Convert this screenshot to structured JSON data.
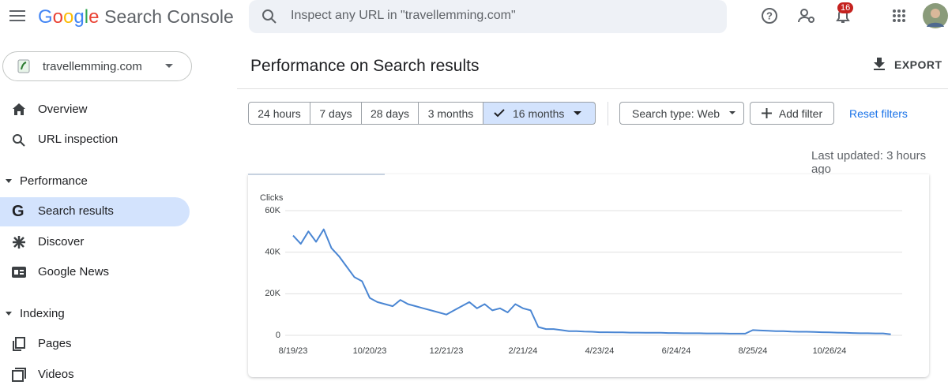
{
  "brand": {
    "logo": "Google",
    "product": "Search Console"
  },
  "search": {
    "placeholder": "Inspect any URL in \"travellemming.com\""
  },
  "notifications": {
    "count": "16"
  },
  "property": "travellemming.com",
  "nav": {
    "items": [
      "Overview",
      "URL inspection"
    ],
    "sections": [
      {
        "title": "Performance",
        "items": [
          "Search results",
          "Discover",
          "Google News"
        ]
      },
      {
        "title": "Indexing",
        "items": [
          "Pages",
          "Videos"
        ]
      }
    ]
  },
  "page": {
    "title": "Performance on Search results",
    "export": "EXPORT",
    "last_updated": "Last updated: 3 hours ago"
  },
  "filters": {
    "ranges": [
      "24 hours",
      "7 days",
      "28 days",
      "3 months",
      "16 months"
    ],
    "search_type": "Search type: Web",
    "add_filter": "Add filter",
    "reset": "Reset filters"
  },
  "chart_data": {
    "type": "line",
    "y_label": "Clicks",
    "color": "#4a86d3",
    "categories": [
      "8/19/23",
      null,
      null,
      null,
      null,
      null,
      null,
      null,
      null,
      null,
      "10/20/23",
      null,
      null,
      null,
      null,
      null,
      null,
      null,
      null,
      null,
      "12/21/23",
      null,
      null,
      null,
      null,
      null,
      null,
      null,
      null,
      null,
      "2/21/24",
      null,
      null,
      null,
      null,
      null,
      null,
      null,
      null,
      null,
      "4/23/24",
      null,
      null,
      null,
      null,
      null,
      null,
      null,
      null,
      null,
      "6/24/24",
      null,
      null,
      null,
      null,
      null,
      null,
      null,
      null,
      null,
      "8/25/24",
      null,
      null,
      null,
      null,
      null,
      null,
      null,
      null,
      null,
      "10/26/24",
      null,
      null,
      null,
      null,
      null,
      null,
      null,
      null
    ],
    "values": [
      48000,
      44000,
      50000,
      45000,
      51000,
      42000,
      38000,
      33000,
      28000,
      26000,
      18000,
      16000,
      15000,
      14000,
      17000,
      15000,
      14000,
      13000,
      12000,
      11000,
      10000,
      12000,
      14000,
      16000,
      13000,
      15000,
      12000,
      13000,
      11000,
      15000,
      13000,
      12000,
      4000,
      3000,
      3000,
      2500,
      2000,
      2000,
      1800,
      1700,
      1500,
      1500,
      1400,
      1400,
      1300,
      1300,
      1200,
      1200,
      1200,
      1100,
      1100,
      1000,
      1000,
      1000,
      900,
      900,
      900,
      800,
      800,
      800,
      2500,
      2300,
      2200,
      2000,
      2000,
      1800,
      1700,
      1700,
      1600,
      1500,
      1400,
      1300,
      1200,
      1100,
      1000,
      1000,
      900,
      900,
      500
    ],
    "ylim": [
      0,
      60000
    ],
    "yticks": [
      0,
      {
        "value": 20000,
        "label": "20K"
      },
      {
        "value": 40000,
        "label": "40K"
      },
      {
        "value": 60000,
        "label": "60K"
      }
    ],
    "grid": true
  }
}
